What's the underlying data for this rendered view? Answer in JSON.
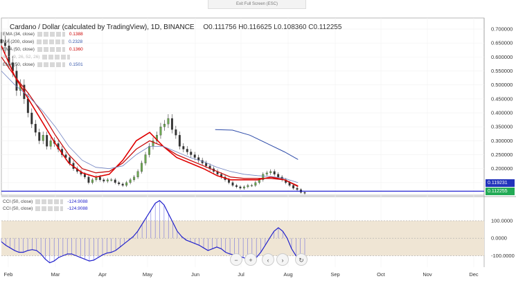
{
  "fullscreen_hint": "Exit Full Screen (ESC)",
  "title": "Cardano / Dollar (calculated by TradingView), 1D, BINANCE",
  "ohlc": {
    "open": "O0.111756",
    "high": "H0.116625",
    "low": "L0.108360",
    "close": "C0.112255"
  },
  "indicators": [
    {
      "label": "EMA (34, close)",
      "value": "0.1388",
      "color": "#cc0000"
    },
    {
      "label": "MA (200, close)",
      "value": "0.2328",
      "color": "#3355aa"
    },
    {
      "label": "EMA (50, close)",
      "value": "0.1360",
      "color": "#cc0000"
    },
    {
      "label": "ICH (9, 26, 52, 26)",
      "value": "",
      "color": "#bbbbbb"
    },
    {
      "label": "EMA (50, close)",
      "value": "0.1501",
      "color": "#3355aa"
    }
  ],
  "cci_labels": [
    {
      "label": "CCI (50, close)",
      "value": "-124.9088"
    },
    {
      "label": "CCI (50, close)",
      "value": "-124.9088"
    }
  ],
  "price_badges": [
    {
      "value": "0.119231",
      "color": "#2233bb"
    },
    {
      "value": "0.112255",
      "color": "#22aa55"
    }
  ],
  "colors": {
    "ema34": "#e00000",
    "ema50": "#c81010",
    "ma200": "#2c4aa8",
    "ema50b": "#6e80c0",
    "hline": "#1f1fd0",
    "cci": "#2020cc",
    "cci_band": "#efe5d4"
  },
  "nav_icons": [
    "minus-icon",
    "plus-icon",
    "chevron-left-icon",
    "chevron-right-icon",
    "reset-icon"
  ],
  "chart_data": {
    "type": "line",
    "price_pane": {
      "yticks": [
        "0.700000",
        "0.650000",
        "0.600000",
        "0.550000",
        "0.500000",
        "0.450000",
        "0.400000",
        "0.350000",
        "0.300000",
        "0.250000",
        "0.200000",
        "0.150000"
      ],
      "ylim": [
        0.105,
        0.715
      ],
      "xlim": [
        0,
        315
      ],
      "horizontal_line": 0.119231,
      "series": [
        {
          "name": "EMA (34, close)",
          "points": [
            [
              0,
              0.64
            ],
            [
              14,
              0.53
            ],
            [
              28,
              0.45
            ],
            [
              42,
              0.37
            ],
            [
              56,
              0.29
            ],
            [
              70,
              0.22
            ],
            [
              84,
              0.185
            ],
            [
              98,
              0.17
            ],
            [
              112,
              0.18
            ],
            [
              126,
              0.23
            ],
            [
              140,
              0.3
            ],
            [
              154,
              0.33
            ],
            [
              168,
              0.28
            ],
            [
              182,
              0.24
            ],
            [
              196,
              0.22
            ],
            [
              210,
              0.2
            ],
            [
              224,
              0.175
            ],
            [
              238,
              0.16
            ],
            [
              252,
              0.16
            ],
            [
              266,
              0.16
            ],
            [
              280,
              0.17
            ],
            [
              294,
              0.16
            ],
            [
              308,
              0.138
            ]
          ]
        },
        {
          "name": "EMA (50, close)",
          "points": [
            [
              0,
              0.6
            ],
            [
              14,
              0.53
            ],
            [
              28,
              0.47
            ],
            [
              42,
              0.4
            ],
            [
              56,
              0.32
            ],
            [
              70,
              0.25
            ],
            [
              84,
              0.2
            ],
            [
              98,
              0.185
            ],
            [
              112,
              0.19
            ],
            [
              126,
              0.22
            ],
            [
              140,
              0.27
            ],
            [
              154,
              0.3
            ],
            [
              168,
              0.28
            ],
            [
              182,
              0.25
            ],
            [
              196,
              0.23
            ],
            [
              210,
              0.21
            ],
            [
              224,
              0.19
            ],
            [
              238,
              0.17
            ],
            [
              252,
              0.165
            ],
            [
              266,
              0.165
            ],
            [
              280,
              0.165
            ],
            [
              294,
              0.16
            ],
            [
              308,
              0.136
            ]
          ]
        },
        {
          "name": "EMA (50, close)",
          "points": [
            [
              0,
              0.55
            ],
            [
              14,
              0.5
            ],
            [
              28,
              0.46
            ],
            [
              42,
              0.41
            ],
            [
              56,
              0.35
            ],
            [
              70,
              0.28
            ],
            [
              84,
              0.23
            ],
            [
              98,
              0.205
            ],
            [
              112,
              0.2
            ],
            [
              126,
              0.21
            ],
            [
              140,
              0.25
            ],
            [
              154,
              0.28
            ],
            [
              168,
              0.28
            ],
            [
              182,
              0.26
            ],
            [
              196,
              0.24
            ],
            [
              210,
              0.225
            ],
            [
              224,
              0.205
            ],
            [
              238,
              0.19
            ],
            [
              252,
              0.18
            ],
            [
              266,
              0.175
            ],
            [
              280,
              0.172
            ],
            [
              294,
              0.165
            ],
            [
              308,
              0.15
            ]
          ]
        },
        {
          "name": "MA (200, close)",
          "points": [
            [
              222,
              0.34
            ],
            [
              240,
              0.338
            ],
            [
              258,
              0.32
            ],
            [
              276,
              0.29
            ],
            [
              294,
              0.26
            ],
            [
              308,
              0.233
            ]
          ]
        }
      ],
      "close": [
        0.65,
        0.64,
        0.58,
        0.55,
        0.48,
        0.5,
        0.45,
        0.4,
        0.36,
        0.33,
        0.3,
        0.32,
        0.28,
        0.3,
        0.29,
        0.27,
        0.25,
        0.24,
        0.22,
        0.2,
        0.19,
        0.18,
        0.17,
        0.15,
        0.16,
        0.17,
        0.16,
        0.155,
        0.16,
        0.16,
        0.15,
        0.145,
        0.14,
        0.15,
        0.16,
        0.17,
        0.19,
        0.22,
        0.25,
        0.28,
        0.3,
        0.32,
        0.35,
        0.36,
        0.38,
        0.34,
        0.32,
        0.28,
        0.27,
        0.26,
        0.25,
        0.24,
        0.23,
        0.22,
        0.21,
        0.2,
        0.19,
        0.18,
        0.17,
        0.16,
        0.15,
        0.14,
        0.135,
        0.13,
        0.135,
        0.14,
        0.14,
        0.15,
        0.16,
        0.18,
        0.185,
        0.19,
        0.18,
        0.17,
        0.16,
        0.15,
        0.14,
        0.13,
        0.125,
        0.115,
        0.112
      ]
    },
    "cci_pane": {
      "yticks": [
        "100.0000",
        "0.0000",
        "-100.0000"
      ],
      "ylim": [
        -165,
        230
      ],
      "band": [
        -100,
        100
      ],
      "values": [
        -20,
        -40,
        -55,
        -70,
        -80,
        -80,
        -70,
        -65,
        -70,
        -90,
        -120,
        -140,
        -130,
        -110,
        -100,
        -90,
        -90,
        -100,
        -110,
        -120,
        -130,
        -125,
        -110,
        -95,
        -85,
        -80,
        -70,
        -50,
        -30,
        -10,
        10,
        40,
        80,
        120,
        160,
        200,
        215,
        190,
        140,
        90,
        40,
        10,
        -10,
        -20,
        -30,
        -40,
        -55,
        -70,
        -60,
        -50,
        -60,
        -80,
        -90,
        -95,
        -100,
        -110,
        -120,
        -135,
        -110,
        -80,
        -40,
        0,
        40,
        60,
        40,
        0,
        -60,
        -100,
        -130,
        -125
      ]
    },
    "x_ticks": [
      "Feb",
      "Mar",
      "Apr",
      "May",
      "Jun",
      "Jul",
      "Aug",
      "Sep",
      "Oct",
      "Nov",
      "Dec"
    ]
  }
}
